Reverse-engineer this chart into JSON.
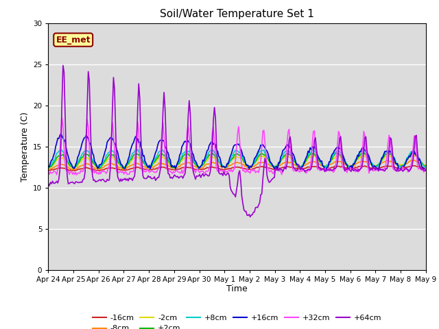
{
  "title": "Soil/Water Temperature Set 1",
  "xlabel": "Time",
  "ylabel": "Temperature (C)",
  "ylim": [
    0,
    30
  ],
  "yticks": [
    0,
    5,
    10,
    15,
    20,
    25,
    30
  ],
  "bg_color": "#dcdcdc",
  "fig_color": "#ffffff",
  "annotation_text": "EE_met",
  "annotation_bg": "#ffff99",
  "annotation_border": "#8b0000",
  "series_colors": {
    "-16cm": "#cc2222",
    "-8cm": "#ff8800",
    "-2cm": "#dddd00",
    "+2cm": "#00bb00",
    "+8cm": "#00cccc",
    "+16cm": "#0000cc",
    "+32cm": "#ff44ff",
    "+64cm": "#9900cc"
  },
  "x_tick_labels": [
    "Apr 24",
    "Apr 25",
    "Apr 26",
    "Apr 27",
    "Apr 28",
    "Apr 29",
    "Apr 30",
    "May 1",
    "May 2",
    "May 3",
    "May 4",
    "May 5",
    "May 6",
    "May 7",
    "May 8",
    "May 9"
  ],
  "n_days": 15,
  "n_points": 360
}
